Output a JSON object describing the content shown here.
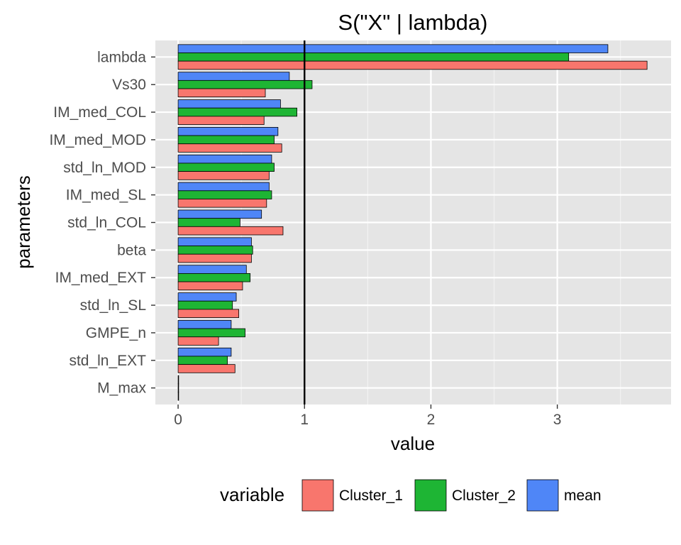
{
  "chart_data": {
    "type": "bar",
    "orientation": "horizontal",
    "title": "S(\"X\" | lambda)",
    "xlabel": "value",
    "ylabel": "parameters",
    "xlim": [
      -0.18,
      3.9
    ],
    "x_ticks": [
      0,
      1,
      2,
      3
    ],
    "grid": true,
    "background": "#e5e5e5",
    "reference_line": {
      "x": 1,
      "color": "#000000"
    },
    "legend": {
      "title": "variable",
      "position": "bottom"
    },
    "categories": [
      "lambda",
      "Vs30",
      "IM_med_COL",
      "IM_med_MOD",
      "std_ln_MOD",
      "IM_med_SL",
      "std_ln_COL",
      "beta",
      "IM_med_EXT",
      "std_ln_SL",
      "GMPE_n",
      "std_ln_EXT",
      "M_max"
    ],
    "series": [
      {
        "name": "Cluster_1",
        "color": "#f8766d",
        "values": [
          3.71,
          0.69,
          0.68,
          0.82,
          0.72,
          0.7,
          0.83,
          0.58,
          0.51,
          0.48,
          0.32,
          0.45,
          0.0
        ]
      },
      {
        "name": "Cluster_2",
        "color": "#1eb534",
        "values": [
          3.09,
          1.06,
          0.94,
          0.76,
          0.76,
          0.74,
          0.49,
          0.59,
          0.57,
          0.43,
          0.53,
          0.39,
          0.0
        ]
      },
      {
        "name": "mean",
        "color": "#4f86f7",
        "values": [
          3.4,
          0.88,
          0.81,
          0.79,
          0.74,
          0.72,
          0.66,
          0.58,
          0.54,
          0.46,
          0.42,
          0.42,
          0.0
        ]
      }
    ]
  }
}
